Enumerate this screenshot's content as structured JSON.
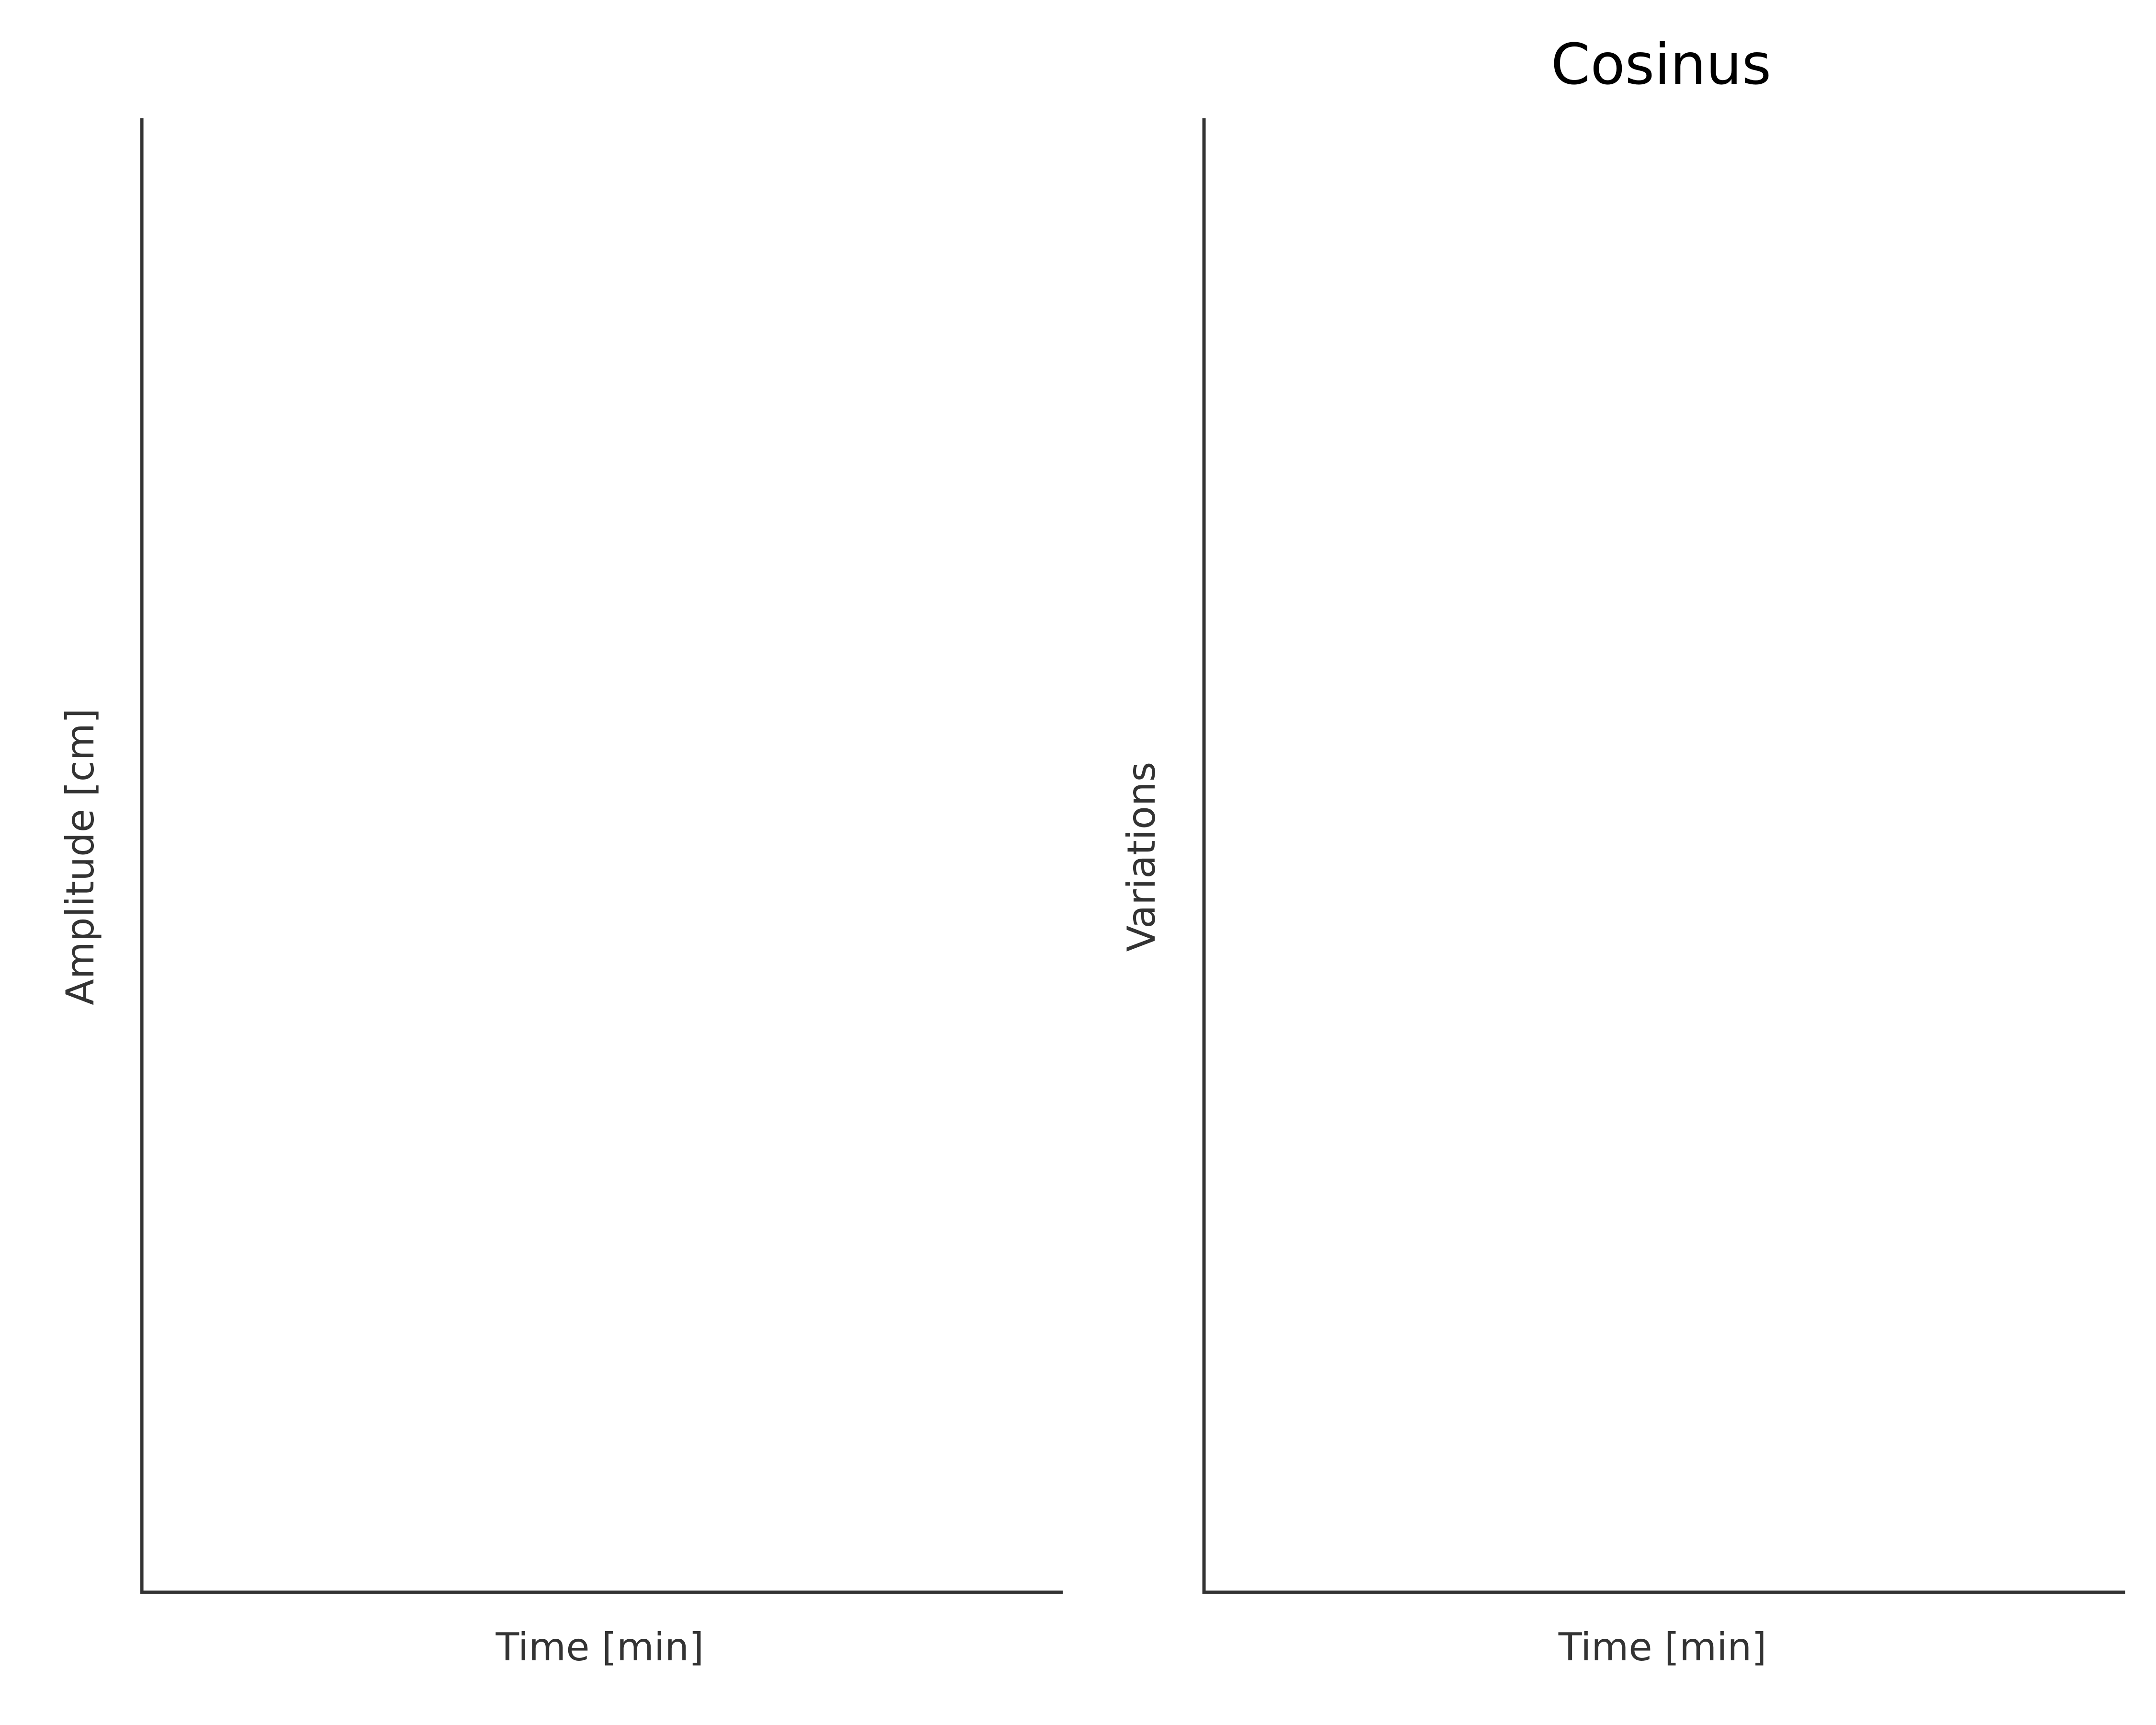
{
  "chart_data": [
    {
      "type": "line",
      "title": "",
      "xlabel": "Time [min]",
      "ylabel": "Amplitude [cm]",
      "series": [],
      "grid": false
    },
    {
      "type": "line",
      "title": "Cosinus",
      "xlabel": "Time [min]",
      "ylabel": "Variations",
      "series": [],
      "grid": false
    }
  ]
}
